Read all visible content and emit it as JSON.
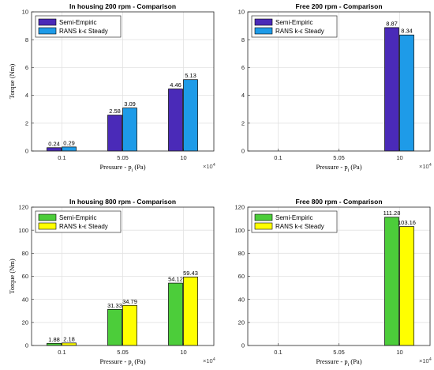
{
  "chart_data": [
    {
      "type": "bar",
      "title": "In housing 200 rpm - Comparison",
      "xlabel": "Pressure - p",
      "xlabel_sub": "i",
      "xlabel_unit": " (Pa)",
      "ylabel": "Torque (Nm)",
      "categories": [
        "0.1",
        "5.05",
        "10"
      ],
      "x_multiplier": "×10",
      "x_multiplier_exp": "4",
      "ylim": [
        0,
        10
      ],
      "yticks": [
        "0",
        "2",
        "4",
        "6",
        "8",
        "10"
      ],
      "legend_position": "top-left",
      "series": [
        {
          "name": "Semi-Empiric",
          "color": "#4a2ab8",
          "values": [
            0.24,
            2.58,
            4.46
          ],
          "labels": [
            "0.24",
            "2.58",
            "4.46"
          ]
        },
        {
          "name": "RANS k-ϵ Steady",
          "color": "#1e9be8",
          "values": [
            0.29,
            3.09,
            5.13
          ],
          "labels": [
            "0.29",
            "3.09",
            "5.13"
          ]
        }
      ]
    },
    {
      "type": "bar",
      "title": "Free 200 rpm - Comparison",
      "xlabel": "Pressure - p",
      "xlabel_sub": "i",
      "xlabel_unit": " (Pa)",
      "ylabel": "",
      "categories": [
        "0.1",
        "5.05",
        "10"
      ],
      "x_multiplier": "×10",
      "x_multiplier_exp": "4",
      "ylim": [
        0,
        10
      ],
      "yticks": [
        "0",
        "2",
        "4",
        "6",
        "8",
        "10"
      ],
      "legend_position": "top-left",
      "series": [
        {
          "name": "Semi-Empiric",
          "color": "#4a2ab8",
          "values": [
            null,
            null,
            8.87
          ],
          "labels": [
            "",
            "",
            "8.87"
          ]
        },
        {
          "name": "RANS k-ϵ Steady",
          "color": "#1e9be8",
          "values": [
            null,
            null,
            8.34
          ],
          "labels": [
            "",
            "",
            "8.34"
          ]
        }
      ]
    },
    {
      "type": "bar",
      "title": "In housing 800 rpm - Comparison",
      "xlabel": "Pressure - p",
      "xlabel_sub": "i",
      "xlabel_unit": " (Pa)",
      "ylabel": "Torque (Nm)",
      "categories": [
        "0.1",
        "5.05",
        "10"
      ],
      "x_multiplier": "×10",
      "x_multiplier_exp": "4",
      "ylim": [
        0,
        120
      ],
      "yticks": [
        "0",
        "20",
        "40",
        "60",
        "80",
        "100",
        "120"
      ],
      "legend_position": "top-left",
      "series": [
        {
          "name": "Semi-Empiric",
          "color": "#4ccd3a",
          "values": [
            1.88,
            31.33,
            54.12
          ],
          "labels": [
            "1.88",
            "31.33",
            "54.12"
          ]
        },
        {
          "name": "RANS k-ϵ Steady",
          "color": "#ffff00",
          "values": [
            2.18,
            34.79,
            59.43
          ],
          "labels": [
            "2.18",
            "34.79",
            "59.43"
          ]
        }
      ]
    },
    {
      "type": "bar",
      "title": "Free 800 rpm - Comparison",
      "xlabel": "Pressure - p",
      "xlabel_sub": "i",
      "xlabel_unit": " (Pa)",
      "ylabel": "",
      "categories": [
        "0.1",
        "5.05",
        "10"
      ],
      "x_multiplier": "×10",
      "x_multiplier_exp": "4",
      "ylim": [
        0,
        120
      ],
      "yticks": [
        "0",
        "20",
        "40",
        "60",
        "80",
        "100",
        "120"
      ],
      "legend_position": "top-left",
      "series": [
        {
          "name": "Semi-Empiric",
          "color": "#4ccd3a",
          "values": [
            null,
            null,
            111.28
          ],
          "labels": [
            "",
            "",
            "111.28"
          ]
        },
        {
          "name": "RANS k-ϵ Steady",
          "color": "#ffff00",
          "values": [
            null,
            null,
            103.16
          ],
          "labels": [
            "",
            "",
            "103.16"
          ]
        }
      ]
    }
  ]
}
